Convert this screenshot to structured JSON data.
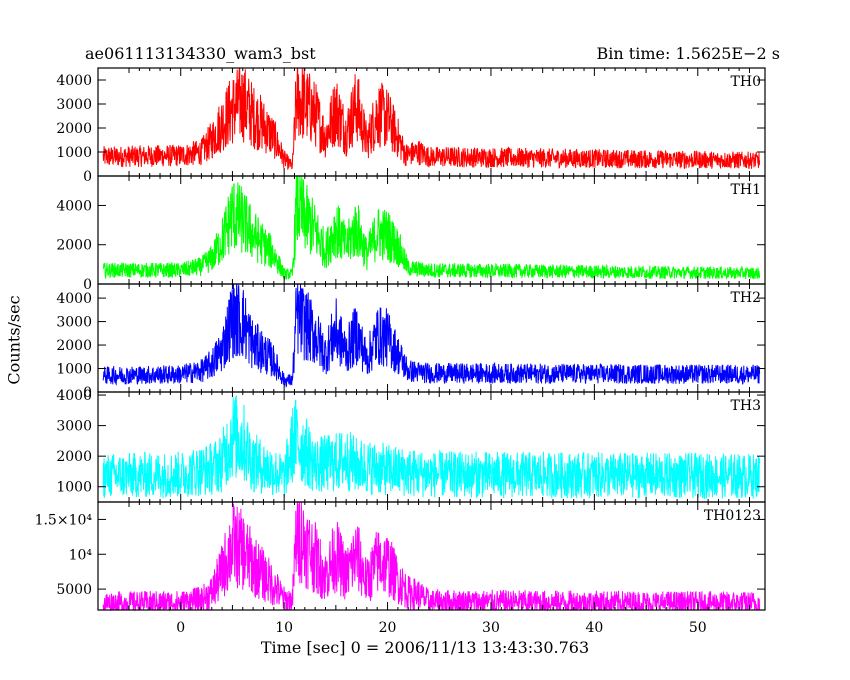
{
  "header": {
    "left": "ae061113134330_wam3_bst",
    "right": "Bin time: 1.5625E−2 s"
  },
  "chart_data": {
    "type": "line",
    "title": "ae061113134330_wam3_bst",
    "subtitle": "Bin time: 1.5625E−2 s",
    "xlabel": "Time [sec] 0 = 2006/11/13 13:43:30.763",
    "ylabel": "Counts/sec",
    "xlim": [
      -8,
      56.5
    ],
    "x_ticks": [
      0,
      10,
      20,
      30,
      40,
      50
    ],
    "x_tick_labels": [
      "0",
      "10",
      "20",
      "30",
      "40",
      "50"
    ],
    "bin_time_s": 0.015625,
    "panels": [
      {
        "name": "TH0",
        "color": "#ff0000",
        "ylim": [
          0,
          4500
        ],
        "y_ticks": [
          0,
          1000,
          2000,
          3000,
          4000
        ],
        "y_tick_labels": [
          "0",
          "1000",
          "2000",
          "3000",
          "4000"
        ],
        "envelope": [
          [
            -8,
            800
          ],
          [
            0,
            850
          ],
          [
            2,
            1000
          ],
          [
            3,
            1500
          ],
          [
            4,
            2200
          ],
          [
            5,
            2800
          ],
          [
            6,
            3100
          ],
          [
            7,
            2500
          ],
          [
            8,
            2100
          ],
          [
            9,
            1600
          ],
          [
            10,
            700
          ],
          [
            10.8,
            400
          ],
          [
            11.2,
            3300
          ],
          [
            12,
            3000
          ],
          [
            13,
            2600
          ],
          [
            14,
            1600
          ],
          [
            15,
            2800
          ],
          [
            16,
            1800
          ],
          [
            17,
            3000
          ],
          [
            18,
            1400
          ],
          [
            19,
            2600
          ],
          [
            20,
            2400
          ],
          [
            21,
            1600
          ],
          [
            21.7,
            900
          ],
          [
            22,
            900
          ],
          [
            23,
            1000
          ],
          [
            24,
            800
          ],
          [
            56,
            650
          ]
        ]
      },
      {
        "name": "TH1",
        "color": "#00ff00",
        "ylim": [
          0,
          5500
        ],
        "y_ticks": [
          0,
          2000,
          4000
        ],
        "y_tick_labels": [
          "0",
          "2000",
          "4000"
        ],
        "envelope": [
          [
            -8,
            700
          ],
          [
            0,
            700
          ],
          [
            2,
            900
          ],
          [
            3,
            1300
          ],
          [
            4,
            2200
          ],
          [
            5,
            3600
          ],
          [
            6,
            3200
          ],
          [
            7,
            2500
          ],
          [
            8,
            2000
          ],
          [
            9,
            1500
          ],
          [
            10,
            500
          ],
          [
            10.8,
            500
          ],
          [
            11.2,
            4000
          ],
          [
            12,
            3400
          ],
          [
            13,
            2700
          ],
          [
            14,
            1700
          ],
          [
            15,
            2900
          ],
          [
            16,
            1900
          ],
          [
            17,
            2900
          ],
          [
            18,
            1500
          ],
          [
            19,
            2600
          ],
          [
            20,
            2500
          ],
          [
            21,
            1900
          ],
          [
            22,
            800
          ],
          [
            24,
            700
          ],
          [
            56,
            550
          ]
        ]
      },
      {
        "name": "TH2",
        "color": "#0000ff",
        "ylim": [
          0,
          4600
        ],
        "y_ticks": [
          0,
          1000,
          2000,
          3000,
          4000
        ],
        "y_tick_labels": [
          "0",
          "1000",
          "2000",
          "3000",
          "4000"
        ],
        "envelope": [
          [
            -8,
            700
          ],
          [
            0,
            750
          ],
          [
            2,
            900
          ],
          [
            3,
            1200
          ],
          [
            4,
            1800
          ],
          [
            5,
            3200
          ],
          [
            6,
            3000
          ],
          [
            7,
            2000
          ],
          [
            8,
            1700
          ],
          [
            9,
            1300
          ],
          [
            10,
            500
          ],
          [
            10.8,
            500
          ],
          [
            11.2,
            3300
          ],
          [
            12,
            2900
          ],
          [
            13,
            2400
          ],
          [
            14,
            1600
          ],
          [
            15,
            2600
          ],
          [
            16,
            1700
          ],
          [
            17,
            2500
          ],
          [
            18,
            1400
          ],
          [
            19,
            2400
          ],
          [
            20,
            2300
          ],
          [
            21,
            1600
          ],
          [
            22,
            900
          ],
          [
            24,
            800
          ],
          [
            56,
            750
          ]
        ]
      },
      {
        "name": "TH3",
        "color": "#00ffff",
        "ylim": [
          500,
          4100
        ],
        "y_ticks": [
          1000,
          2000,
          3000,
          4000
        ],
        "y_tick_labels": [
          "1000",
          "2000",
          "3000",
          "4000"
        ],
        "envelope": [
          [
            -8,
            1350
          ],
          [
            0,
            1400
          ],
          [
            3,
            1600
          ],
          [
            4,
            1800
          ],
          [
            5,
            2700
          ],
          [
            6,
            2500
          ],
          [
            7,
            1800
          ],
          [
            9,
            1500
          ],
          [
            10,
            1300
          ],
          [
            11,
            2600
          ],
          [
            12,
            2200
          ],
          [
            13,
            1700
          ],
          [
            15,
            1800
          ],
          [
            16,
            1900
          ],
          [
            17,
            1700
          ],
          [
            20,
            1550
          ],
          [
            24,
            1400
          ],
          [
            56,
            1350
          ]
        ]
      },
      {
        "name": "TH0123",
        "color": "#ff00ff",
        "ylim": [
          2000,
          17500
        ],
        "y_ticks": [
          5000,
          10000,
          15000
        ],
        "y_tick_labels": [
          "5000",
          "10⁴",
          "1.5×10⁴"
        ],
        "envelope": [
          [
            -8,
            3000
          ],
          [
            0,
            3100
          ],
          [
            2,
            3500
          ],
          [
            3,
            4500
          ],
          [
            4,
            7500
          ],
          [
            5,
            11500
          ],
          [
            6,
            10500
          ],
          [
            7,
            8500
          ],
          [
            8,
            7000
          ],
          [
            9,
            5500
          ],
          [
            10,
            3500
          ],
          [
            10.8,
            3300
          ],
          [
            11.2,
            13500
          ],
          [
            12,
            11500
          ],
          [
            13,
            9500
          ],
          [
            14,
            6800
          ],
          [
            15,
            10000
          ],
          [
            16,
            7000
          ],
          [
            17,
            10000
          ],
          [
            18,
            6000
          ],
          [
            19,
            9000
          ],
          [
            20,
            8600
          ],
          [
            21,
            6300
          ],
          [
            22,
            4500
          ],
          [
            23,
            4200
          ],
          [
            24,
            3200
          ],
          [
            56,
            3000
          ]
        ]
      }
    ]
  }
}
